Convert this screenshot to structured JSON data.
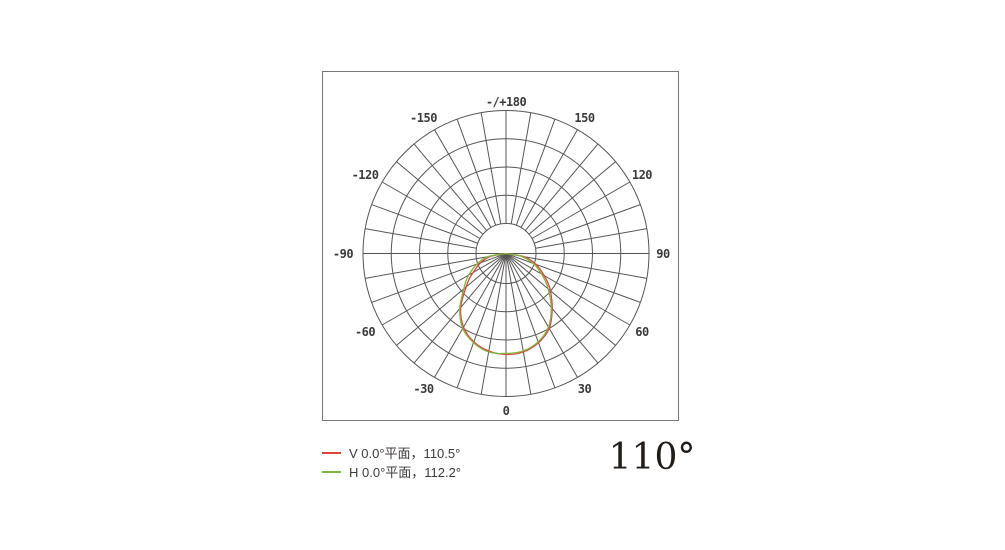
{
  "beam_angle": {
    "text": "110°"
  },
  "legend": {
    "items": [
      {
        "label": "V 0.0°平面，110.5°",
        "color": "#e0453c"
      },
      {
        "label": "H 0.0°平面，112.2°",
        "color": "#7cb83e"
      }
    ]
  },
  "chart_data": {
    "type": "polar_photometric",
    "description": "Luminous intensity distribution curve; angles in degrees from nadir (0 at bottom), radius = relative intensity (fraction of outer grid circle)",
    "grid": {
      "ring_fracs": [
        0.2098,
        0.4073,
        0.6049,
        0.8024,
        1.0
      ],
      "spoke_step_deg": 10,
      "outer_radius_px": 143,
      "grid_color": "#585454",
      "labels_every_deg": 30
    },
    "angle_labels": [
      {
        "text": "0",
        "angle": 0
      },
      {
        "text": "30",
        "angle": 30
      },
      {
        "text": "60",
        "angle": 60
      },
      {
        "text": "90",
        "angle": 90
      },
      {
        "text": "120",
        "angle": 120
      },
      {
        "text": "150",
        "angle": 150
      },
      {
        "text": "-/+180",
        "angle": 180,
        "r": 152
      },
      {
        "text": "-150",
        "angle": -150,
        "dx": -4
      },
      {
        "text": "-120",
        "angle": -120,
        "dx": -5
      },
      {
        "text": "-90",
        "angle": -90,
        "dx": -6
      },
      {
        "text": "-60",
        "angle": -60,
        "dx": -5
      },
      {
        "text": "-30",
        "angle": -30,
        "dx": -4
      }
    ],
    "series": [
      {
        "name": "V 0.0°平面",
        "beam_angle_deg": 110.5,
        "color": "#e0453c",
        "points": [
          [
            -90,
            0
          ],
          [
            -80,
            0.105
          ],
          [
            -70,
            0.189
          ],
          [
            -60,
            0.266
          ],
          [
            -55,
            0.315
          ],
          [
            -50,
            0.364
          ],
          [
            -40,
            0.493
          ],
          [
            -30,
            0.594
          ],
          [
            -20,
            0.657
          ],
          [
            -10,
            0.692
          ],
          [
            0,
            0.706
          ],
          [
            10,
            0.699
          ],
          [
            20,
            0.664
          ],
          [
            30,
            0.605
          ],
          [
            40,
            0.503
          ],
          [
            50,
            0.406
          ],
          [
            55,
            0.357
          ],
          [
            60,
            0.308
          ],
          [
            70,
            0.224
          ],
          [
            80,
            0.126
          ],
          [
            90,
            0
          ]
        ]
      },
      {
        "name": "H 0.0°平面",
        "beam_angle_deg": 112.2,
        "color": "#7cb83e",
        "points": [
          [
            -90,
            0
          ],
          [
            -80,
            0.126
          ],
          [
            -70,
            0.217
          ],
          [
            -60,
            0.301
          ],
          [
            -55,
            0.343
          ],
          [
            -50,
            0.385
          ],
          [
            -40,
            0.503
          ],
          [
            -30,
            0.605
          ],
          [
            -20,
            0.664
          ],
          [
            -10,
            0.699
          ],
          [
            0,
            0.699
          ],
          [
            10,
            0.692
          ],
          [
            20,
            0.657
          ],
          [
            30,
            0.594
          ],
          [
            40,
            0.493
          ],
          [
            50,
            0.385
          ],
          [
            55,
            0.336
          ],
          [
            60,
            0.287
          ],
          [
            70,
            0.203
          ],
          [
            80,
            0.105
          ],
          [
            90,
            0
          ]
        ]
      }
    ]
  }
}
